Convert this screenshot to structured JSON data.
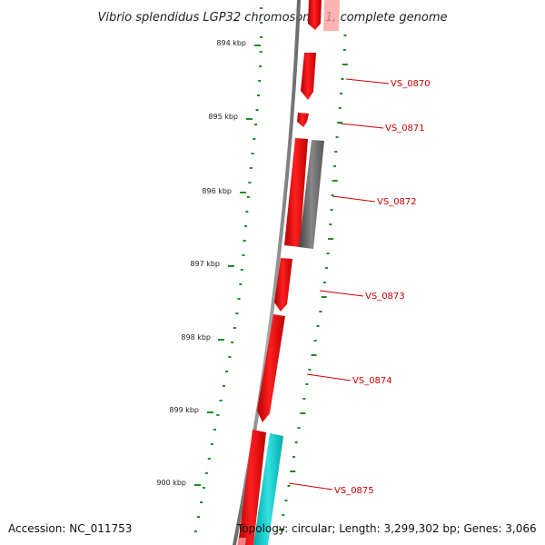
{
  "title": "Vibrio splendidus LGP32 chromosome 1, complete genome",
  "scale_labels": [
    "894 kbp",
    "895 kbp",
    "896 kbp",
    "897 kbp",
    "898 kbp",
    "899 kbp",
    "900 kbp"
  ],
  "genes": [
    "VS_0870",
    "VS_0871",
    "VS_0872",
    "VS_0873",
    "VS_0874",
    "VS_0875"
  ],
  "colors": {
    "forward_cds": "#ff0000",
    "reverse_cds": "#666666",
    "rna": "#00cccc",
    "backbone": "#808080",
    "gc_skew": "#228b22",
    "label": "#cc0000"
  },
  "footer": {
    "accession": "Accession: NC_011753",
    "topology": "Topology: circular; Length: 3,299,302 bp; Genes: 3,066"
  }
}
